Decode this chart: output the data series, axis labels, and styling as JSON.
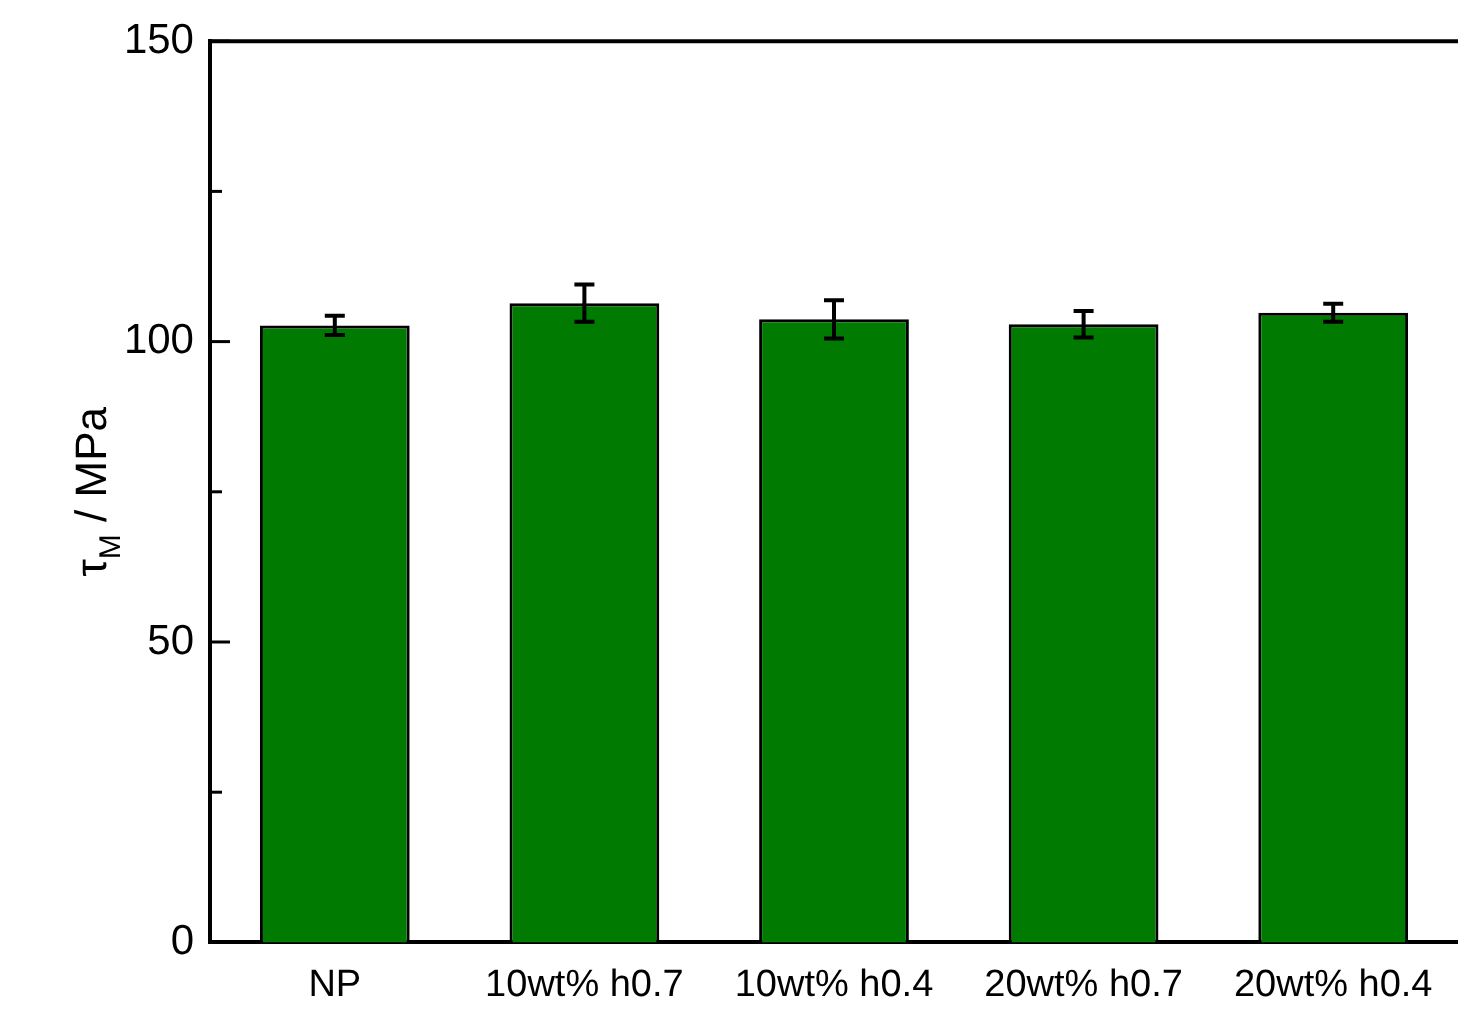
{
  "chart_data": {
    "type": "bar",
    "ylabel": "τ$_{M}$ / MPa",
    "categories": [
      "NP",
      "10wt% h0.7",
      "10wt% h0.4",
      "20wt% h0.7",
      "20wt% h0.4"
    ],
    "values": [
      102.7,
      106.4,
      103.7,
      102.9,
      104.8
    ],
    "errors": [
      1.6,
      3.1,
      3.2,
      2.2,
      1.5
    ],
    "color": "#007a00",
    "ylim": [
      0,
      150
    ],
    "yticks": [
      0,
      {
        "value": 25,
        "label": null
      },
      50,
      {
        "value": 75,
        "label": null
      },
      100,
      {
        "value": 125,
        "label": null
      },
      150
    ],
    "grid": false,
    "legend": false
  }
}
